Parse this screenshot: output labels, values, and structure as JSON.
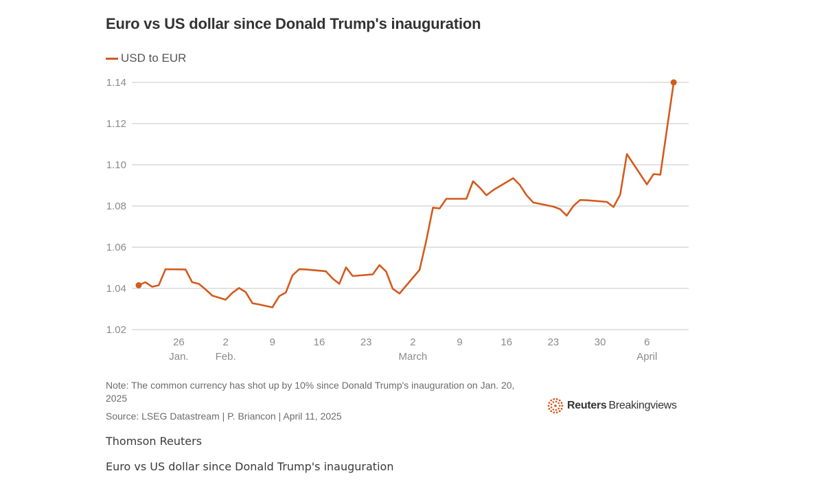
{
  "page": {
    "caption_credit": "Thomson Reuters",
    "caption_title": "Euro vs US dollar since Donald Trump's inauguration"
  },
  "colors": {
    "series": "#d35a1e",
    "grid": "#d9d9d9",
    "text": "#8a8a8a"
  },
  "footer": {
    "note": "Note: The common currency has shot up by 10% since Donald Trump's inauguration on Jan. 20, 2025",
    "source": "Source: LSEG Datastream | P. Briancon | April 11, 2025",
    "logo_brand": "Reuters",
    "logo_sub": "Breakingviews",
    "logo_icon": "reuters-dot-ring-icon"
  },
  "chart_data": {
    "type": "line",
    "title": "Euro vs US dollar since Donald Trump's inauguration",
    "xlabel": "",
    "ylabel": "",
    "ylim": [
      1.02,
      1.14
    ],
    "yticks": [
      1.02,
      1.04,
      1.06,
      1.08,
      1.1,
      1.12,
      1.14
    ],
    "ytick_labels": [
      "1.02",
      "1.04",
      "1.06",
      "1.08",
      "1.10",
      "1.12",
      "1.14"
    ],
    "grid": true,
    "legend_position": "top-left",
    "xlim": [
      20,
      101
    ],
    "x_unit": "days since Jan 1, 2025",
    "xticks": [
      {
        "x": 26,
        "label": "26",
        "month": "Jan."
      },
      {
        "x": 33,
        "label": "2",
        "month": "Feb."
      },
      {
        "x": 40,
        "label": "9",
        "month": ""
      },
      {
        "x": 47,
        "label": "16",
        "month": ""
      },
      {
        "x": 54,
        "label": "23",
        "month": ""
      },
      {
        "x": 61,
        "label": "2",
        "month": "March"
      },
      {
        "x": 68,
        "label": "9",
        "month": ""
      },
      {
        "x": 75,
        "label": "16",
        "month": ""
      },
      {
        "x": 82,
        "label": "23",
        "month": ""
      },
      {
        "x": 89,
        "label": "30",
        "month": ""
      },
      {
        "x": 96,
        "label": "6",
        "month": "April"
      }
    ],
    "series": [
      {
        "name": "USD to EUR",
        "x": [
          20,
          21,
          22,
          23,
          24,
          27,
          28,
          29,
          30,
          31,
          32,
          33,
          34,
          35,
          36,
          37,
          38,
          40,
          41,
          42,
          43,
          44,
          45,
          48,
          49,
          50,
          51,
          52,
          55,
          56,
          57,
          58,
          59,
          62,
          63,
          64,
          65,
          66,
          68,
          69,
          70,
          71,
          72,
          73,
          76,
          77,
          78,
          79,
          82,
          83,
          84,
          85,
          86,
          87,
          90,
          91,
          92,
          93,
          96,
          97,
          98,
          99,
          100
        ],
        "values": [
          1.0415,
          1.043,
          1.0408,
          1.0415,
          1.0493,
          1.0492,
          1.043,
          1.0422,
          1.0395,
          1.0365,
          1.0355,
          1.0345,
          1.0378,
          1.0402,
          1.0382,
          1.0328,
          1.0322,
          1.0308,
          1.0362,
          1.038,
          1.0463,
          1.0493,
          1.0492,
          1.0483,
          1.0448,
          1.0422,
          1.0502,
          1.046,
          1.0468,
          1.0513,
          1.0482,
          1.0398,
          1.0375,
          1.049,
          1.0632,
          1.0792,
          1.0788,
          1.0835,
          1.0835,
          1.0835,
          1.092,
          1.0889,
          1.0852,
          1.0877,
          1.0935,
          1.0902,
          1.0852,
          1.0817,
          1.0797,
          1.0785,
          1.0753,
          1.08,
          1.0829,
          1.0828,
          1.082,
          1.0795,
          1.0855,
          1.1052,
          1.0905,
          1.0955,
          1.0952,
          1.1175,
          1.14
        ]
      }
    ]
  }
}
